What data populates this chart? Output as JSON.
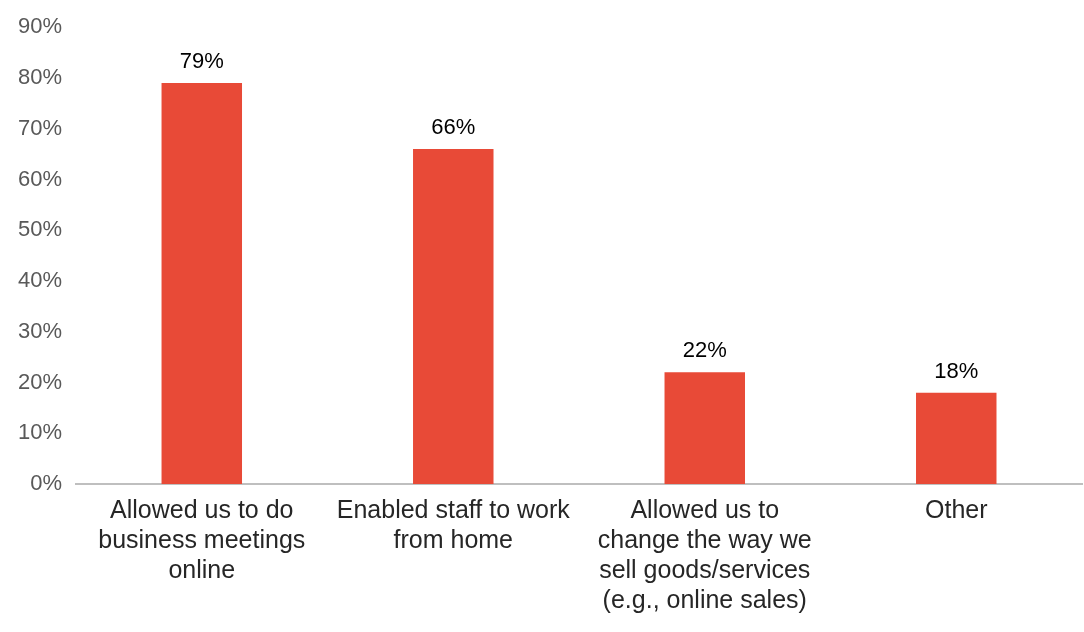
{
  "chart_data": {
    "type": "bar",
    "categories": [
      "Allowed us to do business meetings online",
      "Enabled staff to work from home",
      "Allowed us to change the way we sell goods/services (e.g., online sales)",
      "Other"
    ],
    "values": [
      79,
      66,
      22,
      18
    ],
    "value_labels": [
      "79%",
      "66%",
      "22%",
      "18%"
    ],
    "color": "#e84a37",
    "ylim": [
      0,
      90
    ],
    "yticks": [
      {
        "value": 0,
        "label": "0%"
      },
      {
        "value": 10,
        "label": "10%"
      },
      {
        "value": 20,
        "label": "20%"
      },
      {
        "value": 30,
        "label": "30%"
      },
      {
        "value": 40,
        "label": "40%"
      },
      {
        "value": 50,
        "label": "50%"
      },
      {
        "value": 60,
        "label": "60%"
      },
      {
        "value": 70,
        "label": "70%"
      },
      {
        "value": 80,
        "label": "80%"
      },
      {
        "value": 90,
        "label": "90%"
      }
    ],
    "grid": false,
    "legend": false
  }
}
